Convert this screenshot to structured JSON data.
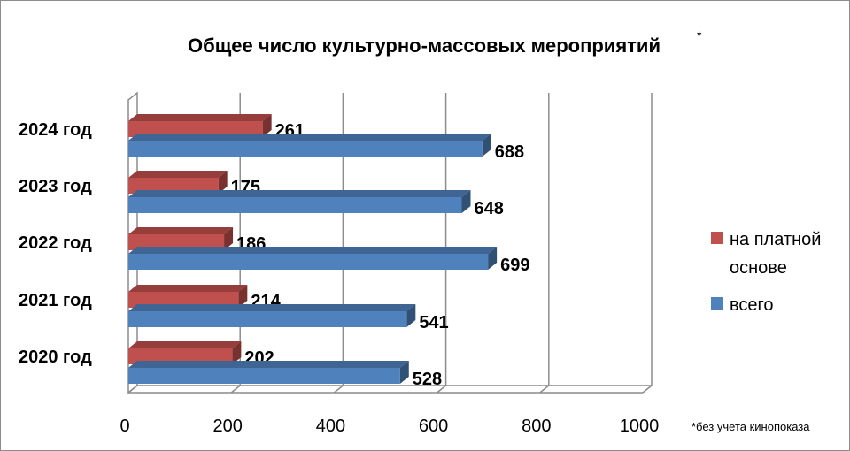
{
  "chart_data": {
    "type": "bar",
    "orientation": "horizontal",
    "style": "3d-clustered",
    "title": "Общее число культурно-массовых мероприятий",
    "title_mark": "*",
    "categories": [
      "2020 год",
      "2021 год",
      "2022 год",
      "2023 год",
      "2024 год"
    ],
    "series": [
      {
        "name": "всего",
        "values": [
          528,
          541,
          699,
          648,
          688
        ],
        "color": "#4f81bd"
      },
      {
        "name": "на платной основе",
        "values": [
          202,
          214,
          186,
          175,
          261
        ],
        "color": "#c0504d"
      }
    ],
    "xlim": [
      0,
      1000
    ],
    "xticks": [
      0,
      200,
      400,
      600,
      800,
      1000
    ],
    "grid": true,
    "legend_position": "right",
    "legend": {
      "entries": [
        {
          "lines": [
            "на платной",
            "основе"
          ],
          "color": "#c0504d"
        },
        {
          "lines": [
            "всего"
          ],
          "color": "#4f81bd"
        }
      ]
    },
    "footnote": "*без учета кинопоказа"
  }
}
